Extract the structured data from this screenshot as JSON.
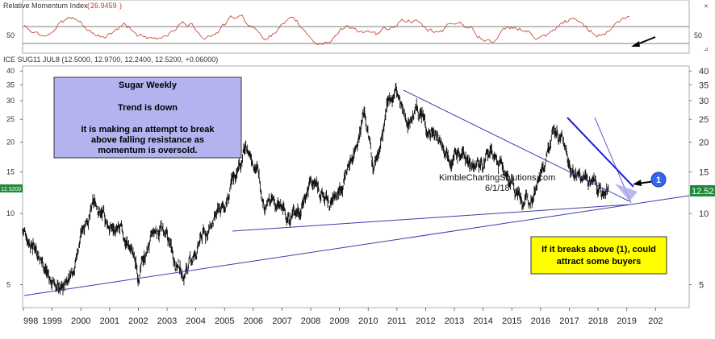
{
  "rsi_panel": {
    "title": "Relative Momentum Index",
    "value": "26.9459",
    "tick_label": "50",
    "colors": {
      "line": "#c0392b",
      "title_value": "#c0392b",
      "arrow": "#000000"
    }
  },
  "price_panel": {
    "title": "ICE SUG11 JUL8 (12.5000, 12.9700, 12.2400, 12.5200, +0.06000)",
    "last_left": "12.5200",
    "last_right": "12.52",
    "colors": {
      "bars": "#111111",
      "trendlines": "#3b3bb0",
      "blue_line": "#2222cc",
      "last_badge": "#1e8b3a"
    }
  },
  "annotations": {
    "box1": {
      "title": "Sugar Weekly",
      "line2": "Trend is down",
      "line3": "It is making an attempt to break",
      "line4": "above falling resistance as",
      "line5": "momentum is oversold.",
      "color": "#b3b3ef"
    },
    "box2": {
      "line1": "If it breaks above (1), could",
      "line2": "attract some buyers",
      "color": "#ffff00"
    },
    "watermark": "KimbleChartingSolutions.com",
    "date": "6/1/18",
    "marker": "1"
  },
  "chart_data": {
    "type": "line",
    "title": "ICE SUG11 JUL8",
    "y_scale": "log",
    "ylim": [
      4,
      42
    ],
    "y_ticks": [
      40,
      35,
      30,
      25,
      20,
      15,
      10,
      5
    ],
    "x_ticks": [
      "998",
      "1999",
      "2000",
      "2001",
      "2002",
      "2003",
      "2004",
      "2005",
      "2006",
      "2007",
      "2008",
      "2009",
      "2010",
      "2011",
      "2012",
      "2013",
      "2014",
      "2015",
      "2016",
      "2017",
      "2018",
      "2019",
      "202"
    ],
    "series": [
      {
        "x": [
          1998.0,
          1998.5,
          1999.0,
          1999.4,
          1999.8,
          2000.2,
          2000.6,
          2000.9,
          2001.3,
          2001.8,
          2002.0,
          2002.4,
          2002.8,
          2003.2,
          2003.6,
          2004.0,
          2004.3,
          2004.7,
          2005.0,
          2005.4,
          2005.7,
          2006.1,
          2006.4,
          2006.8,
          2007.2,
          2007.7,
          2008.0,
          2008.3,
          2008.7,
          2009.0,
          2009.5,
          2009.9,
          2010.2,
          2010.4,
          2010.8,
          2011.0,
          2011.3,
          2011.7,
          2012.0,
          2012.4,
          2012.8,
          2013.2,
          2013.6,
          2014.0,
          2014.4,
          2014.8,
          2015.2,
          2015.6,
          2015.9,
          2016.2,
          2016.5,
          2016.8,
          2017.1,
          2017.5,
          2017.9,
          2018.2,
          2018.4
        ],
        "values": [
          8.5,
          7.3,
          5.2,
          4.6,
          6.4,
          9.8,
          11.0,
          9.1,
          8.3,
          7.0,
          5.5,
          7.3,
          8.8,
          6.8,
          5.6,
          6.6,
          8.2,
          9.0,
          10.3,
          14.2,
          18.6,
          17.1,
          11.6,
          10.8,
          9.6,
          11.0,
          13.9,
          12.8,
          10.6,
          12.4,
          18.2,
          28.0,
          16.0,
          18.8,
          30.2,
          33.5,
          24.0,
          28.0,
          24.4,
          20.8,
          19.5,
          17.9,
          16.8,
          16.3,
          17.2,
          14.4,
          12.8,
          11.1,
          14.8,
          16.0,
          22.4,
          20.4,
          16.0,
          13.5,
          14.1,
          12.1,
          12.5
        ]
      }
    ],
    "rsi_ylim": [
      0,
      100
    ]
  }
}
